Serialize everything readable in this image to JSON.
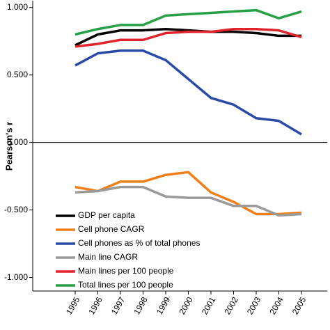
{
  "chart_data": {
    "type": "line",
    "y_label": "Pearson's r",
    "categories": [
      "1995",
      "1996",
      "1997",
      "1998",
      "1999",
      "2000",
      "2001",
      "2002",
      "2003",
      "2004",
      "2005"
    ],
    "series": [
      {
        "name": "GDP per capita",
        "color": "#000000",
        "values": [
          0.72,
          0.8,
          0.83,
          0.83,
          0.84,
          0.83,
          0.82,
          0.82,
          0.81,
          0.79,
          0.79
        ]
      },
      {
        "name": "Cell phone CAGR",
        "color": "#f07f1a",
        "values": [
          -0.33,
          -0.36,
          -0.29,
          -0.29,
          -0.24,
          -0.22,
          -0.37,
          -0.44,
          -0.53,
          -0.53,
          -0.52
        ]
      },
      {
        "name": "Cell phones as % of total phones",
        "color": "#2b4aa8",
        "values": [
          0.57,
          0.66,
          0.68,
          0.68,
          0.61,
          0.47,
          0.33,
          0.28,
          0.18,
          0.16,
          0.06
        ]
      },
      {
        "name": "Main line CAGR",
        "color": "#9a9a9a",
        "values": [
          -0.37,
          -0.36,
          -0.33,
          -0.33,
          -0.4,
          -0.41,
          -0.41,
          -0.47,
          -0.47,
          -0.54,
          -0.53
        ]
      },
      {
        "name": "Main lines per 100 people",
        "color": "#e0242b",
        "values": [
          0.71,
          0.73,
          0.76,
          0.76,
          0.81,
          0.82,
          0.82,
          0.84,
          0.84,
          0.83,
          0.78
        ]
      },
      {
        "name": "Total lines per 100 people",
        "color": "#27a047",
        "values": [
          0.8,
          0.84,
          0.87,
          0.87,
          0.94,
          0.95,
          0.96,
          0.97,
          0.98,
          0.92,
          0.97
        ]
      }
    ],
    "ylim": [
      -1.1,
      1.05
    ],
    "yticks": [
      {
        "value": 1,
        "label": "1.000"
      },
      {
        "value": 0.5,
        "label": "0.500"
      },
      {
        "value": 0,
        "label": "0.000"
      },
      {
        "value": -0.5,
        "label": "-0.500"
      },
      {
        "value": -1,
        "label": "-1.000"
      }
    ],
    "legend": "lower left"
  }
}
